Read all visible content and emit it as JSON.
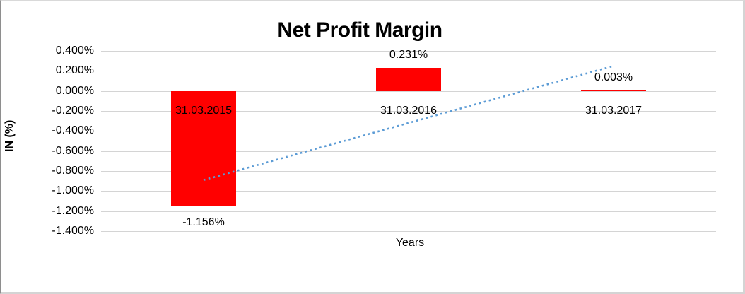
{
  "chart_data": {
    "type": "bar",
    "title": "Net Profit Margin",
    "xlabel": "Years",
    "ylabel": "IN (%)",
    "categories": [
      "31.03.2015",
      "31.03.2016",
      "31.03.2017"
    ],
    "values": [
      -1.156,
      0.231,
      0.003
    ],
    "data_labels": [
      "-1.156%",
      "0.231%",
      "0.003%"
    ],
    "series": [
      {
        "name": "Net Profit Margin",
        "values": [
          -1.156,
          0.231,
          0.003
        ]
      }
    ],
    "ylim": [
      -1.4,
      0.4
    ],
    "ytick_step": 0.2,
    "yticks": [
      {
        "v": 0.4,
        "label": "0.400%"
      },
      {
        "v": 0.2,
        "label": "0.200%"
      },
      {
        "v": 0.0,
        "label": "0.000%"
      },
      {
        "v": -0.2,
        "label": "-0.200%"
      },
      {
        "v": -0.4,
        "label": "-0.400%"
      },
      {
        "v": -0.6,
        "label": "-0.600%"
      },
      {
        "v": -0.8,
        "label": "-0.800%"
      },
      {
        "v": -1.0,
        "label": "-1.000%"
      },
      {
        "v": -1.2,
        "label": "-1.200%"
      },
      {
        "v": -1.4,
        "label": "-1.400%"
      }
    ],
    "grid": true,
    "legend": "none",
    "colors": {
      "bar": "#FF0000",
      "trendline": "#5B9BD5",
      "gridline": "#D4D4D4",
      "text": "#000000",
      "background": "#FFFFFF"
    },
    "trendline": {
      "type": "linear",
      "style": "dotted",
      "start_value": -0.89,
      "end_value": 0.25
    }
  }
}
